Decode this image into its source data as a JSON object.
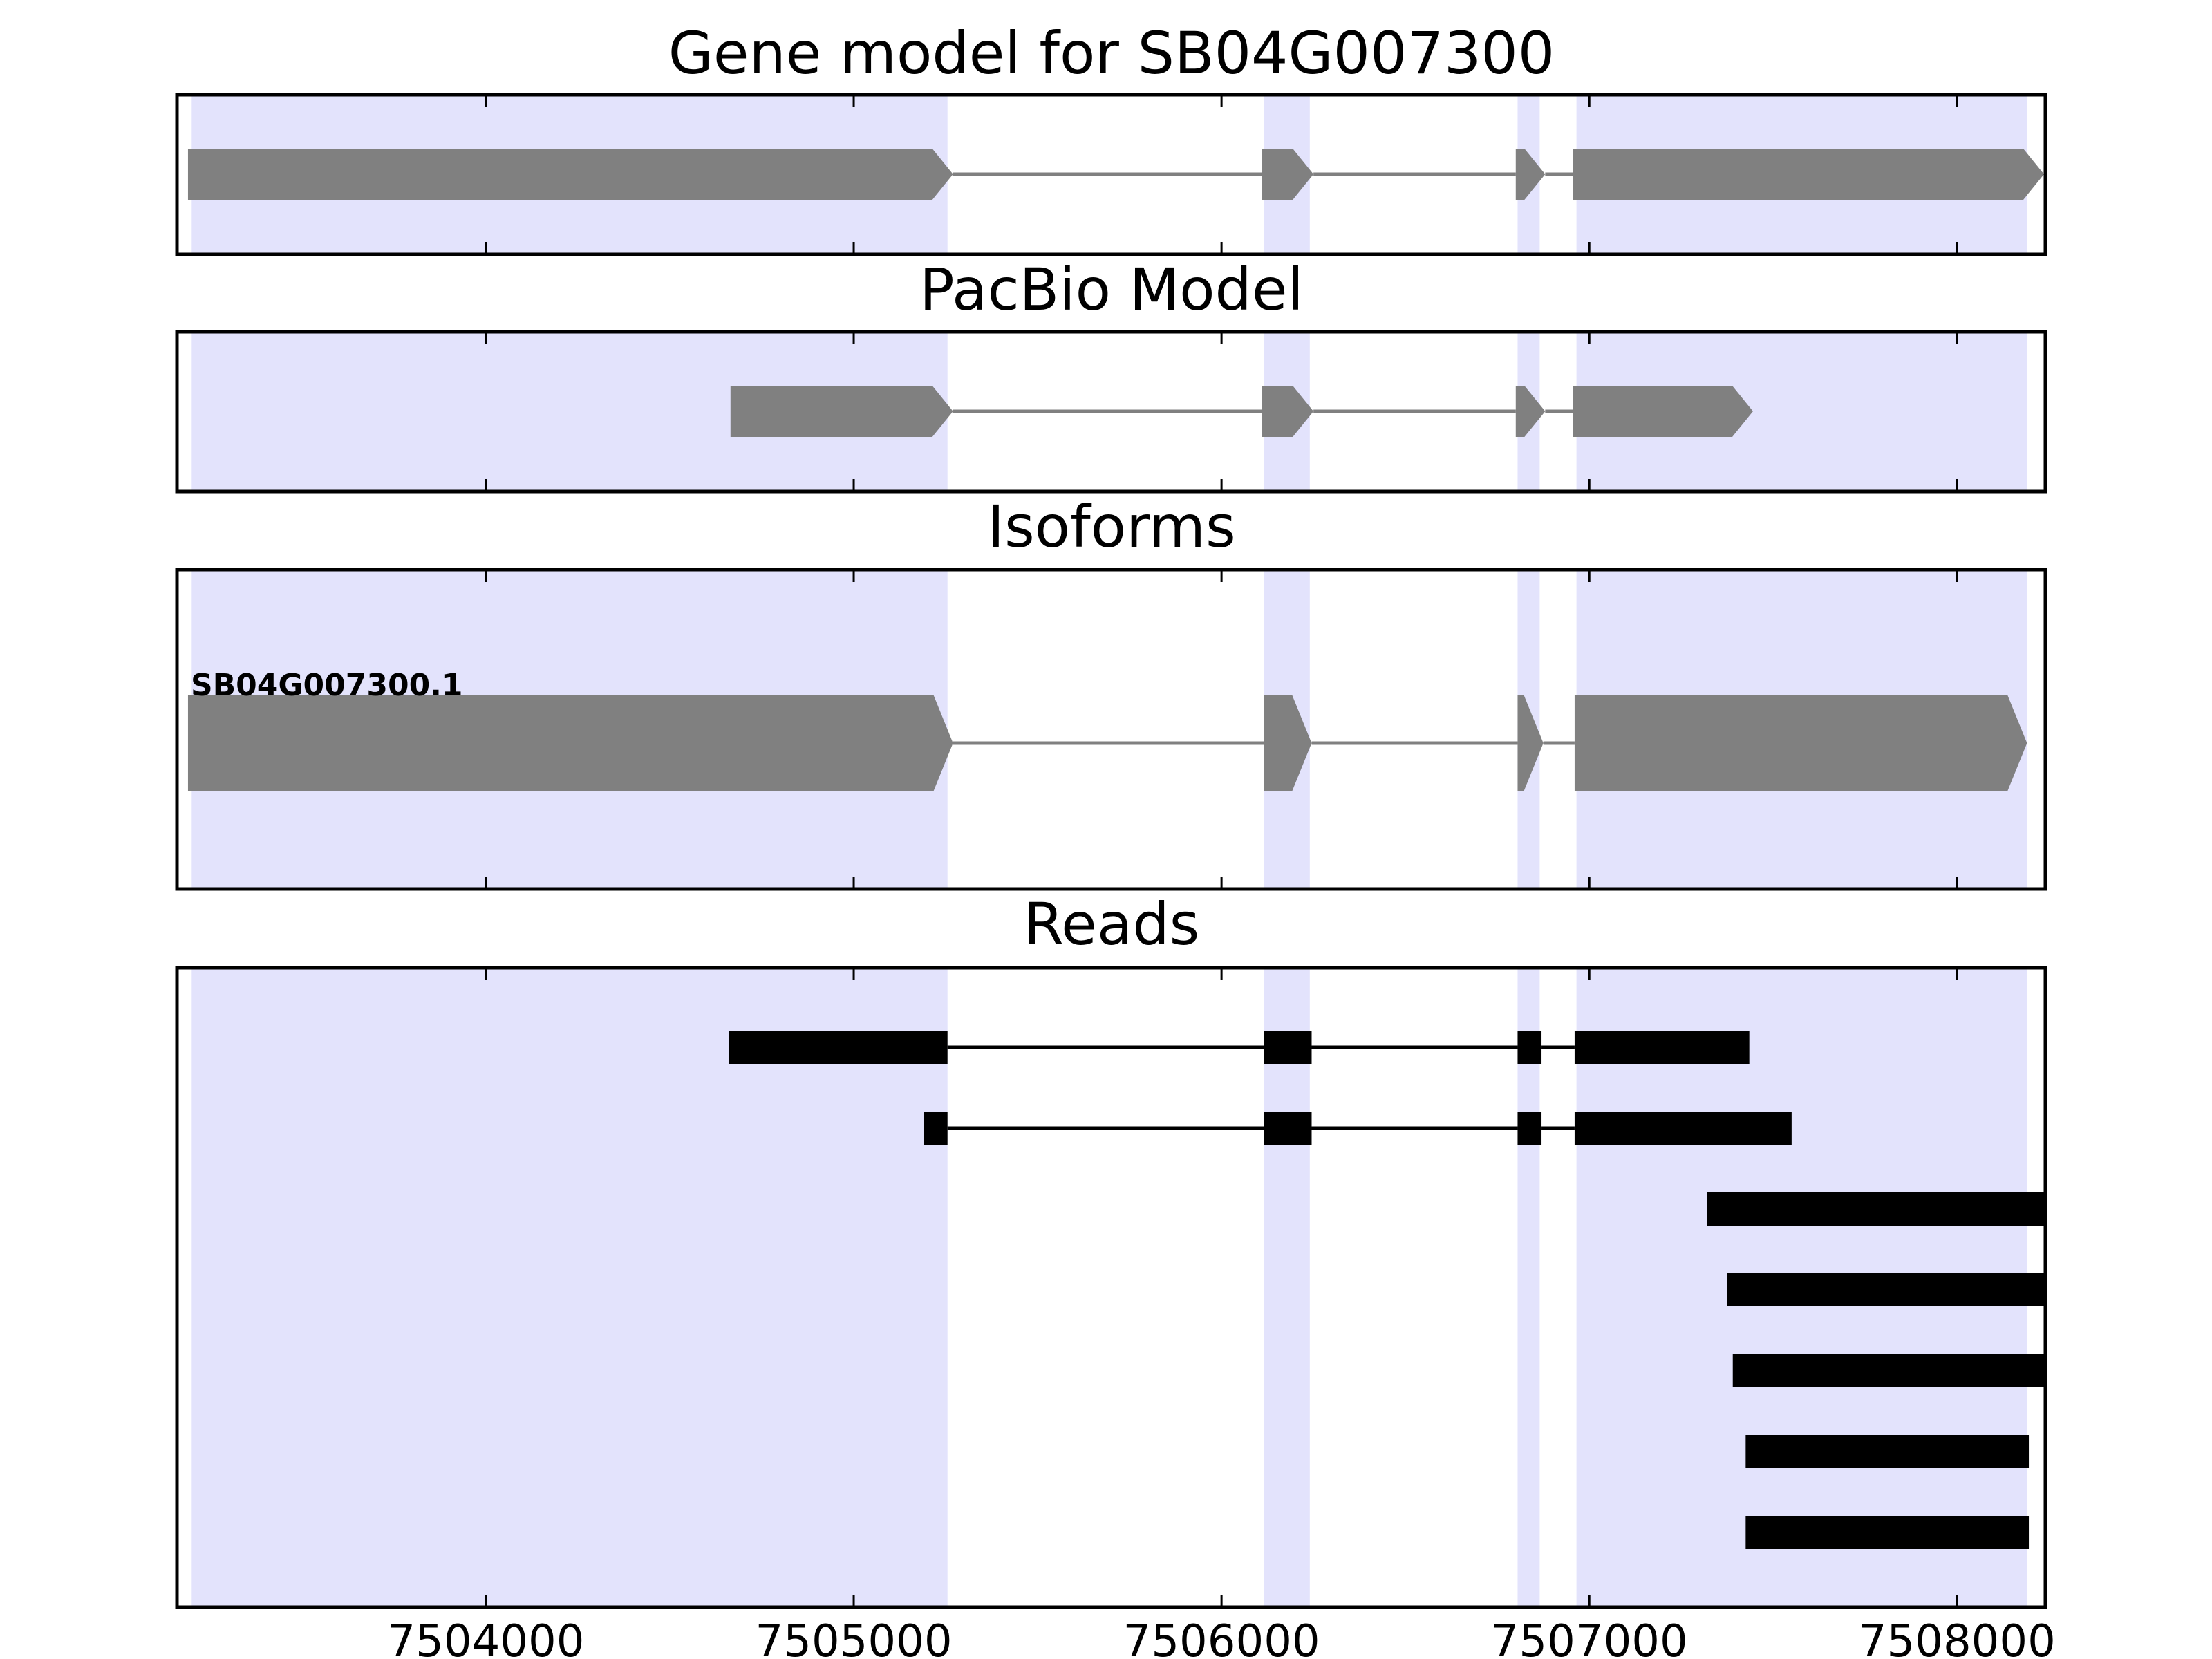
{
  "chart_data": {
    "type": "gene_track",
    "x_range": [
      7503160,
      7508240
    ],
    "x_ticks": [
      7504000,
      7505000,
      7506000,
      7507000,
      7508000
    ],
    "x_tick_labels": [
      "7504000",
      "7505000",
      "7506000",
      "7507000",
      "7508000"
    ],
    "highlight_color": "#e3e3fc",
    "feature_color": "#808080",
    "read_color": "#000000",
    "highlight_regions": [
      [
        7503200,
        7505255
      ],
      [
        7506115,
        7506240
      ],
      [
        7506805,
        7506865
      ],
      [
        7506965,
        7508190
      ]
    ],
    "panels": [
      {
        "title": "Gene model for SB04G007300",
        "kind": "gene",
        "tracks": [
          {
            "label": "",
            "exons": [
              [
                7503190,
                7505270
              ],
              [
                7506110,
                7506250
              ],
              [
                7506800,
                7506880
              ],
              [
                7506955,
                7508240
              ]
            ]
          }
        ]
      },
      {
        "title": "PacBio Model",
        "kind": "gene",
        "tracks": [
          {
            "label": "",
            "exons": [
              [
                7504665,
                7505270
              ],
              [
                7506110,
                7506250
              ],
              [
                7506800,
                7506880
              ],
              [
                7506955,
                7507445
              ]
            ]
          }
        ]
      },
      {
        "title": "Isoforms",
        "kind": "isoform",
        "tracks": [
          {
            "label": "SB04G007300.1",
            "exons": [
              [
                7503190,
                7505270
              ],
              [
                7506115,
                7506245
              ],
              [
                7506805,
                7506875
              ],
              [
                7506960,
                7508190
              ]
            ]
          }
        ]
      },
      {
        "title": "Reads",
        "kind": "reads",
        "tracks": [
          {
            "exons": [
              [
                7504660,
                7505255
              ],
              [
                7506115,
                7506245
              ],
              [
                7506805,
                7506870
              ],
              [
                7506960,
                7507435
              ]
            ]
          },
          {
            "exons": [
              [
                7505190,
                7505255
              ],
              [
                7506115,
                7506245
              ],
              [
                7506805,
                7506870
              ],
              [
                7506960,
                7507550
              ]
            ]
          },
          {
            "exons": [
              [
                7507320,
                7508240
              ]
            ]
          },
          {
            "exons": [
              [
                7507375,
                7508240
              ]
            ]
          },
          {
            "exons": [
              [
                7507390,
                7508240
              ]
            ]
          },
          {
            "exons": [
              [
                7507425,
                7508195
              ]
            ]
          },
          {
            "exons": [
              [
                7507425,
                7508195
              ]
            ]
          }
        ]
      }
    ]
  }
}
